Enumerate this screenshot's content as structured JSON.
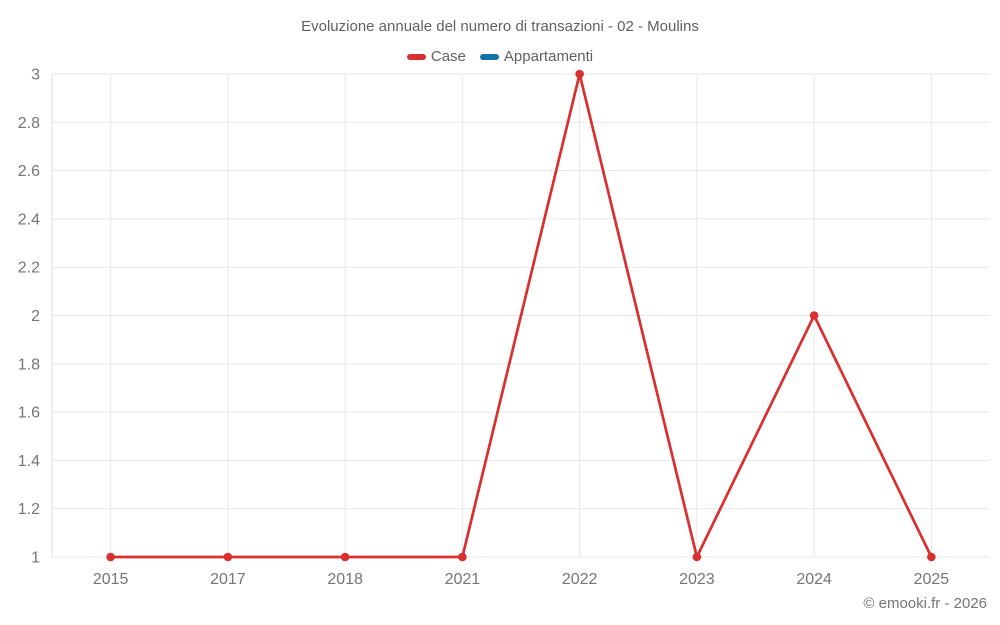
{
  "title": "Evoluzione annuale del numero di transazioni - 02 - Moulins",
  "legend": [
    {
      "label": "Case",
      "color": "#d7302f"
    },
    {
      "label": "Appartamenti",
      "color": "#1272a5"
    }
  ],
  "footer": "© emooki.fr - 2026",
  "colors": {
    "grid": "#e7e7e7",
    "axis_line": "#e0e0e0",
    "tick_text": "#757575",
    "title_text": "#616161",
    "case_red": "#d7302f",
    "appartamenti_blue": "#1272a5",
    "background": "#ffffff"
  },
  "chart_data": {
    "type": "line",
    "categories": [
      "2015",
      "2017",
      "2018",
      "2021",
      "2022",
      "2023",
      "2024",
      "2025"
    ],
    "series": [
      {
        "name": "Case",
        "color": "#d7302f",
        "values": [
          1,
          1,
          1,
          1,
          3,
          1,
          2,
          1
        ],
        "markers": true
      },
      {
        "name": "Appartamenti",
        "color": "#1272a5",
        "values": [],
        "markers": true
      }
    ],
    "title": "Evoluzione annuale del numero di transazioni - 02 - Moulins",
    "xlabel": "",
    "ylabel": "",
    "ylim": [
      1,
      3
    ],
    "ytick_step": 0.2,
    "y_ticks": [
      "3",
      "2.8",
      "2.6",
      "2.4",
      "2.2",
      "2",
      "1.8",
      "1.6",
      "1.4",
      "1.2",
      "1"
    ],
    "grid": "both",
    "legend_position": "top"
  }
}
